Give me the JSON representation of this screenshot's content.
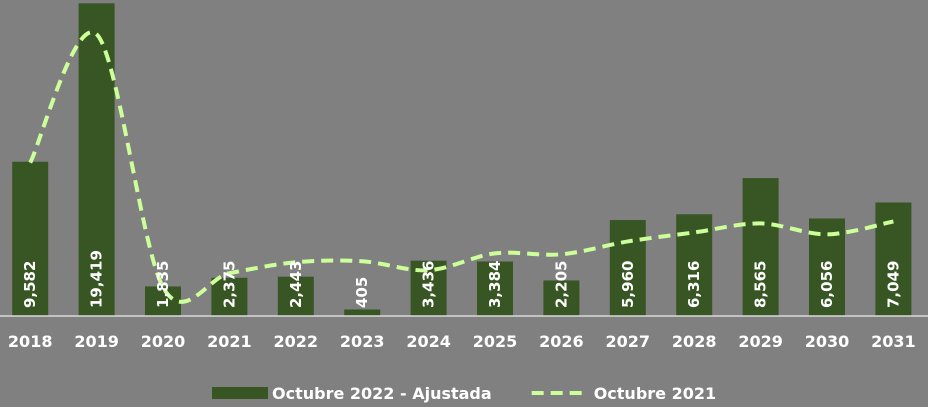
{
  "chart_data": {
    "type": "bar+line",
    "categories": [
      "2018",
      "2019",
      "2020",
      "2021",
      "2022",
      "2023",
      "2024",
      "2025",
      "2026",
      "2027",
      "2028",
      "2029",
      "2030",
      "2031"
    ],
    "series": [
      {
        "name": "Octubre 2022 - Ajustada",
        "type": "bar",
        "color": "#375623",
        "values": [
          9582,
          19419,
          1835,
          2375,
          2443,
          405,
          3436,
          3384,
          2205,
          5960,
          6316,
          8565,
          6056,
          7049
        ],
        "value_labels": [
          "9,582",
          "19,419",
          "1,835",
          "2,375",
          "2,443",
          "405",
          "3,436",
          "3,384",
          "2,205",
          "5,960",
          "6,316",
          "8,565",
          "6,056",
          "7,049"
        ]
      },
      {
        "name": "Octubre 2021",
        "type": "line",
        "color": "#ccff99",
        "dashed": true,
        "values": [
          9520,
          17500,
          1790,
          2660,
          3340,
          3400,
          2840,
          3890,
          3830,
          4630,
          5190,
          5750,
          5070,
          5870
        ]
      }
    ],
    "ylim": [
      0,
      19500
    ],
    "legend": "bottom"
  }
}
